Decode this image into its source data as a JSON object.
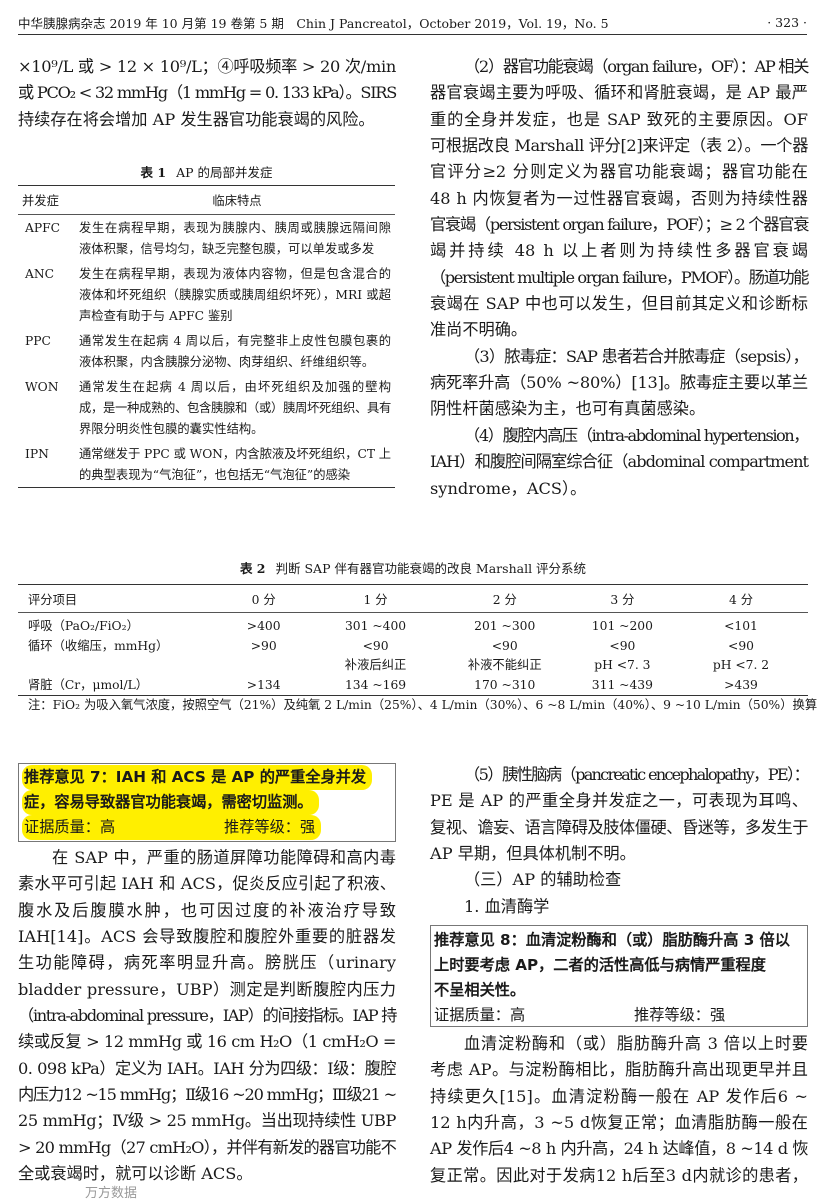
{
  "header": {
    "journal": "中华胰腺病杂志 2019 年 10 月第 19 卷第 5 期　Chin J Pancreatol，October 2019，Vol. 19，No. 5",
    "page": "· 323 ·"
  },
  "left_top": [
    {
      "lines": [
        "×10⁹/L 或 > 12 × 10⁹/L；④呼吸频率 > 20 次/min",
        "或 PCO₂ < 32 mmHg（1 mmHg = 0. 133 kPa）。SIRS",
        "持续存在将会增加 AP 发生器官功能衰竭的风险。"
      ]
    }
  ],
  "table1": {
    "label": "表 1",
    "title": "AP 的局部并发症",
    "headers": [
      "并发症",
      "临床特点"
    ],
    "rows": [
      {
        "name": "APFC",
        "lines": [
          "发生在病程早期，表现为胰腺内、胰周或胰腺远隔间隙",
          "液体积聚，信号均匀，缺乏完整包膜，可以单发或多发"
        ]
      },
      {
        "name": "ANC",
        "lines": [
          "发生在病程早期，表现为液体内容物，但是包含混合的",
          "液体和坏死组织（胰腺实质或胰周组织坏死），MRI 或超",
          "声检查有助于与 APFC 鉴别"
        ]
      },
      {
        "name": "PPC",
        "lines": [
          "通常发生在起病 4 周以后，有完整非上皮性包膜包裹的",
          "液体积聚，内含胰腺分泌物、肉芽组织、纤维组织等。"
        ]
      },
      {
        "name": "WON",
        "lines": [
          "通常发生在起病 4 周以后，由坏死组织及加强的壁构",
          "成，是一种成熟的、包含胰腺和（或）胰周坏死组织、具有",
          "界限分明炎性包膜的囊实性结构。"
        ]
      },
      {
        "name": "IPN",
        "lines": [
          "通常继发于 PPC 或 WON，内含脓液及坏死组织，CT 上",
          "的典型表现为“气泡征”，也包括无“气泡征”的感染"
        ]
      }
    ]
  },
  "right_top": [
    {
      "lines": [
        "（2）器官功能衰竭（organ failure，OF）：AP 相关",
        "器官衰竭主要为呼吸、循环和肾脏衰竭，是 AP 最严",
        "重的全身并发症，也是 SAP 致死的主要原因。OF",
        "可根据改良 Marshall 评分[2]来评定（表 2）。一个器",
        "官评分≥2 分则定义为器官功能衰竭；器官功能在",
        "48 h 内恢复者为一过性器官衰竭，否则为持续性器",
        "官衰竭（persistent organ failure，POF）；≥ 2 个器官衰",
        "竭并持续 48 h 以上者则为持续性多器官衰竭",
        "（persistent multiple organ failure，PMOF）。肠道功能",
        "衰竭在 SAP 中也可以发生，但目前其定义和诊断标",
        "准尚不明确。"
      ]
    },
    {
      "lines": [
        "（3）脓毒症：SAP 患者若合并脓毒症（sepsis），",
        "病死率升高（50% ~80%）[13]。脓毒症主要以革兰",
        "阴性杆菌感染为主，也可有真菌感染。"
      ]
    },
    {
      "lines": [
        "（4）腹腔内高压（intra-abdominal hypertension，",
        "IAH）和腹腔间隔室综合征（abdominal compartment",
        "syndrome，ACS）。"
      ]
    }
  ],
  "table2": {
    "label": "表 2",
    "title": "判断 SAP 伴有器官功能衰竭的改良 Marshall 评分系统",
    "headers": [
      "评分项目",
      "0 分",
      "1 分",
      "2 分",
      "3 分",
      "4 分"
    ],
    "rows": [
      [
        "呼吸（PaO₂/FiO₂）",
        ">400",
        "301 ~400",
        "201 ~300",
        "101 ~200",
        "<101"
      ],
      [
        "循环（收缩压，mmHg）",
        ">90",
        "<90",
        "<90",
        "<90",
        "<90"
      ],
      [
        "",
        "",
        "补液后纠正",
        "补液不能纠正",
        "pH <7. 3",
        "pH <7. 2"
      ],
      [
        "肾脏（Cr，μmol/L）",
        ">134",
        "134 ~169",
        "170 ~310",
        "311 ~439",
        ">439"
      ]
    ],
    "note": "注：FiO₂ 为吸入氧气浓度，按照空气（21%）及纯氧 2 L/min（25%）、4 L/min（30%）、6 ~8 L/min（40%）、9 ~10 L/min（50%）换算"
  },
  "rec7": {
    "line1": "推荐意见 7：IAH 和 ACS 是 AP 的严重全身并发",
    "line2": "症，容易导致器官功能衰竭，需密切监测。",
    "quality": "证据质量：高",
    "grade": "推荐等级：强",
    "highlight_color": "#ffef00"
  },
  "left_bottom": [
    {
      "lines": [
        "在 SAP 中，严重的肠道屏障功能障碍和高内毒",
        "素水平可引起 IAH 和 ACS，促炎反应引起了积液、",
        "腹水及后腹膜水肿，也可因过度的补液治疗导致",
        "IAH[14]。ACS 会导致腹腔和腹腔外重要的脏器发",
        "生功能障碍，病死率明显升高。膀胱压（urinary",
        "bladder pressure，UBP）测定是判断腹腔内压力",
        "（intra-abdominal pressure，IAP）的间接指标。IAP 持",
        "续或反复 > 12 mmHg 或 16 cm H₂O（1 cmH₂O =",
        "0. 098 kPa）定义为 IAH。IAH 分为四级：Ⅰ级：腹腔",
        "内压力12 ~15 mmHg；Ⅱ级16 ~20 mmHg；Ⅲ级21 ~",
        "25 mmHg；Ⅳ级 > 25 mmHg。当出现持续性 UBP",
        "> 20 mmHg（27 cmH₂O），并伴有新发的器官功能不",
        "全或衰竭时，就可以诊断 ACS。"
      ]
    }
  ],
  "right_mid": [
    {
      "lines": [
        "（5）胰性脑病（pancreatic encephalopathy，PE）：",
        "PE 是 AP 的严重全身并发症之一，可表现为耳鸣、",
        "复视、谵妄、语言障碍及肢体僵硬、昏迷等，多发生于",
        "AP 早期，但具体机制不明。"
      ]
    },
    {
      "lines": [
        "（三）AP 的辅助检查"
      ]
    },
    {
      "lines": [
        "1. 血清酶学"
      ]
    }
  ],
  "rec8": {
    "line1": "推荐意见 8：血清淀粉酶和（或）脂肪酶升高 3 倍以",
    "line2": "上时要考虑 AP，二者的活性高低与病情严重程度",
    "line3": "不呈相关性。",
    "quality": "证据质量：高",
    "grade": "推荐等级：强"
  },
  "right_bottom": [
    {
      "lines": [
        "血清淀粉酶和（或）脂肪酶升高 3 倍以上时要",
        "考虑 AP。与淀粉酶相比，脂肪酶升高出现更早并且",
        "持续更久[15]。血清淀粉酶一般在 AP 发作后6 ~",
        "12 h内升高，3 ~5 d恢复正常；血清脂肪酶一般在",
        "AP 发作后4 ~8 h 内升高，24 h 达峰值，8 ~14 d 恢",
        "复正常。因此对于发病12 h后至3 d内就诊的患者，"
      ]
    }
  ],
  "watermark": "万方数据"
}
